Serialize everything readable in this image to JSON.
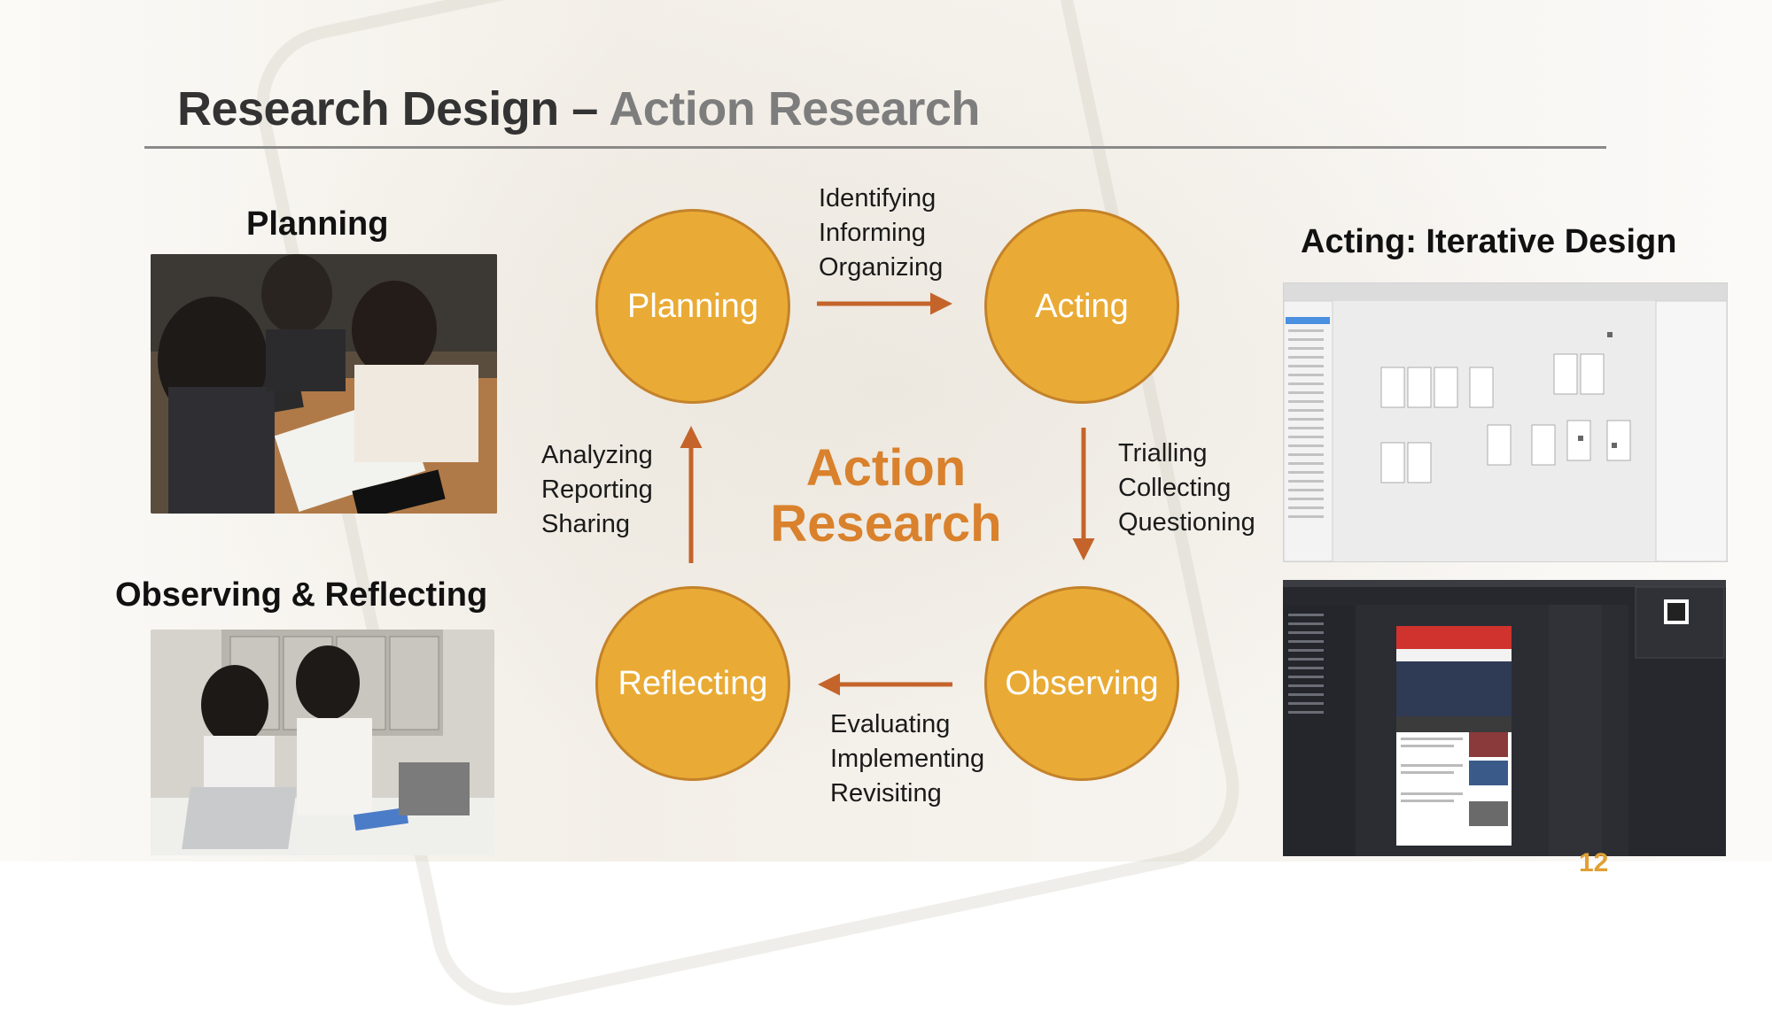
{
  "title": {
    "main": "Research Design – ",
    "sub": "Action Research"
  },
  "panels": {
    "planning_label": "Planning",
    "observing_label": "Observing & Reflecting",
    "acting_label": "Acting: Iterative Design"
  },
  "cycle": {
    "center_line1": "Action",
    "center_line2": "Research",
    "nodes": {
      "planning": "Planning",
      "acting": "Acting",
      "observing": "Observing",
      "reflecting": "Reflecting"
    },
    "transitions": {
      "planning_to_acting": [
        "Identifying",
        "Informing",
        "Organizing"
      ],
      "acting_to_observing": [
        "Trialling",
        "Collecting",
        "Questioning"
      ],
      "observing_to_reflecting": [
        "Evaluating",
        "Implementing",
        "Revisiting"
      ],
      "reflecting_to_planning": [
        "Analyzing",
        "Reporting",
        "Sharing"
      ]
    }
  },
  "colors": {
    "circle_fill": "#e9ab35",
    "arrow": "#c4642a",
    "center_text": "#d9812c",
    "title_main": "#333333",
    "title_sub": "#7d7d7d"
  },
  "slide_number": "12"
}
